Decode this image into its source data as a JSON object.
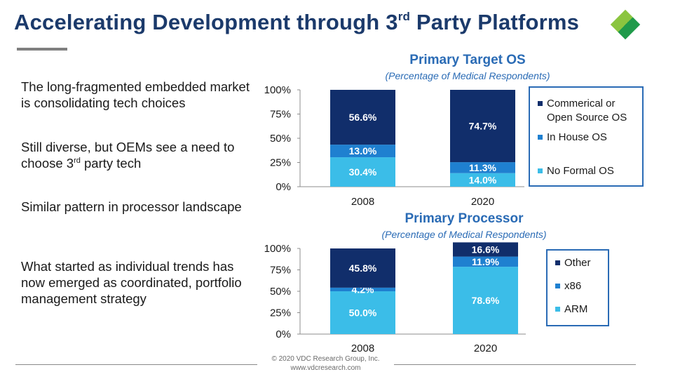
{
  "slide": {
    "title": "Accelerating Development through 3",
    "title_sup": "rd",
    "title_end": " Party Platforms",
    "logo_colors": [
      "#8bc53f",
      "#1f9a4a"
    ],
    "bullets": [
      {
        "text": "The long-fragmented embedded market is consolidating tech choices"
      },
      {
        "text": "Still diverse, but OEMs see a need to choose 3",
        "sup": "rd",
        "after": " party tech"
      },
      {
        "text": "Similar pattern in processor landscape"
      },
      {
        "text": "What started as individual trends has now emerged as coordinated, portfolio management strategy"
      }
    ],
    "footer": {
      "copyright": "© 2020 VDC Research Group, Inc.",
      "url": "www.vdcresearch.com"
    }
  },
  "chart_data": [
    {
      "type": "bar",
      "stacked": true,
      "title": "Primary Target OS",
      "subtitle": "(Percentage of Medical Respondents)",
      "categories": [
        "2008",
        "2020"
      ],
      "yticks": [
        "0%",
        "25%",
        "50%",
        "75%",
        "100%"
      ],
      "ylim": [
        0,
        100
      ],
      "legend_position": "right",
      "series": [
        {
          "name": "No Formal OS",
          "color": "#3bbde8",
          "values": [
            30.4,
            14.0
          ],
          "labels": [
            "30.4%",
            "14.0%"
          ]
        },
        {
          "name": "In House OS",
          "color": "#1f80d0",
          "values": [
            13.0,
            11.3
          ],
          "labels": [
            "13.0%",
            "11.3%"
          ]
        },
        {
          "name": "Commerical or Open Source OS",
          "color": "#112e6b",
          "values": [
            56.6,
            74.7
          ],
          "labels": [
            "56.6%",
            "74.7%"
          ]
        }
      ],
      "legend_order": [
        2,
        1,
        0
      ]
    },
    {
      "type": "bar",
      "stacked": true,
      "title": "Primary Processor",
      "subtitle": "(Percentage of Medical Respondents)",
      "categories": [
        "2008",
        "2020"
      ],
      "yticks": [
        "0%",
        "25%",
        "50%",
        "75%",
        "100%"
      ],
      "ylim": [
        0,
        100
      ],
      "legend_position": "right",
      "series": [
        {
          "name": "ARM",
          "color": "#3bbde8",
          "values": [
            50.0,
            78.6
          ],
          "labels": [
            "50.0%",
            "78.6%"
          ]
        },
        {
          "name": "x86",
          "color": "#1f80d0",
          "values": [
            4.2,
            11.9
          ],
          "labels": [
            "4.2%",
            "11.9%"
          ]
        },
        {
          "name": "Other",
          "color": "#112e6b",
          "values": [
            45.8,
            16.6
          ],
          "labels": [
            "45.8%",
            "16.6%"
          ]
        }
      ],
      "legend_order": [
        2,
        1,
        0
      ]
    }
  ]
}
